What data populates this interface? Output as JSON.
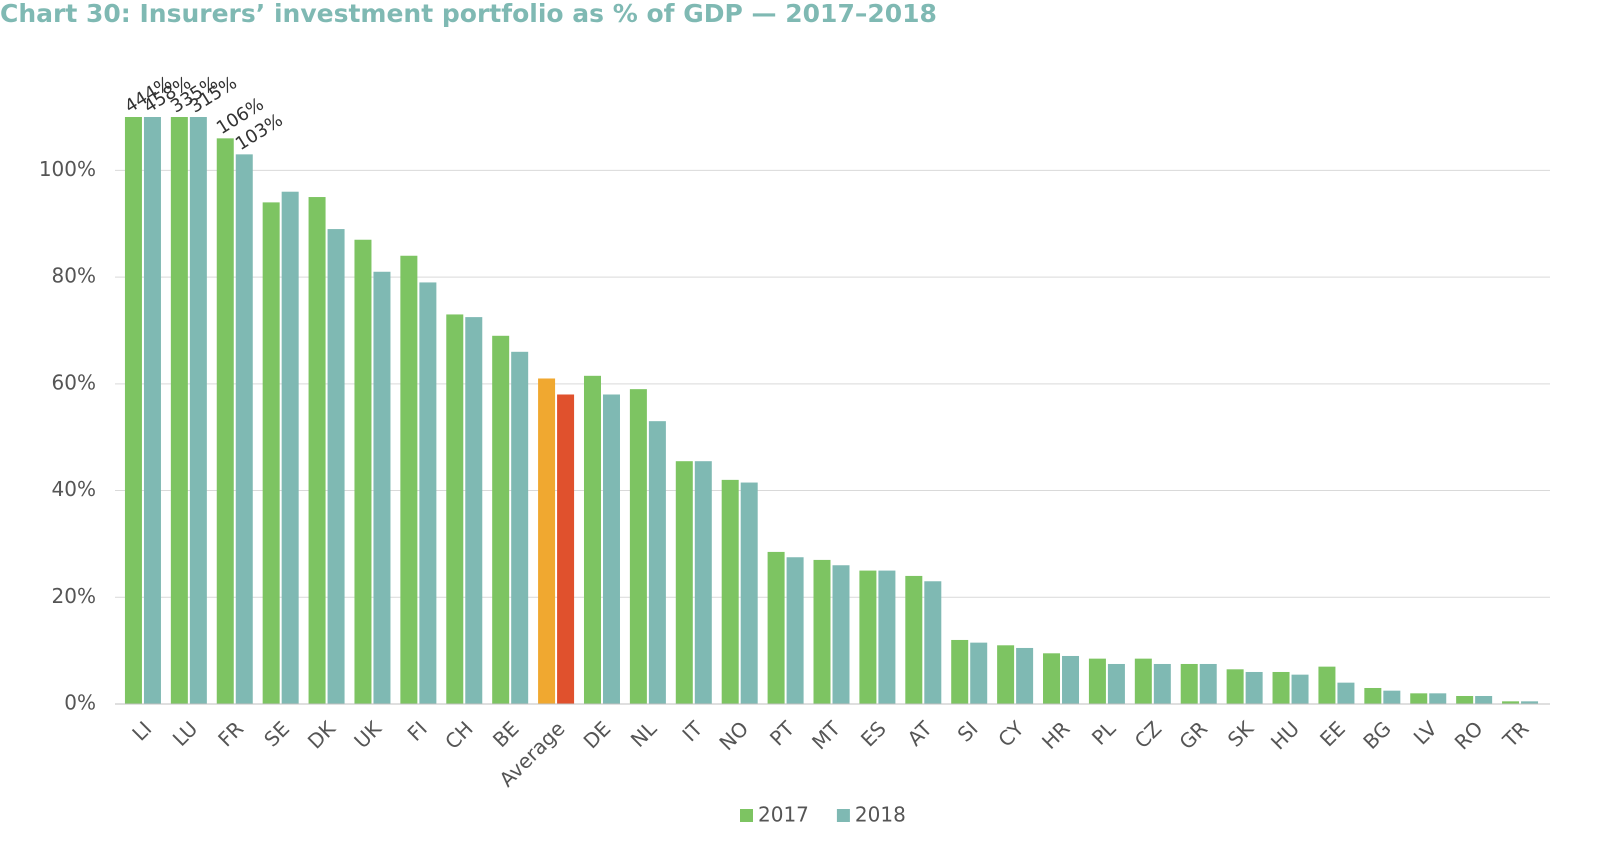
{
  "chart_data": {
    "type": "bar",
    "title": "Chart 30: Insurers’ investment portfolio as % of GDP — 2017–2018",
    "categories": [
      "LI",
      "LU",
      "FR",
      "SE",
      "DK",
      "UK",
      "FI",
      "CH",
      "BE",
      "Average",
      "DE",
      "NL",
      "IT",
      "NO",
      "PT",
      "MT",
      "ES",
      "AT",
      "SI",
      "CY",
      "HR",
      "PL",
      "CZ",
      "GR",
      "SK",
      "HU",
      "EE",
      "BG",
      "LV",
      "RO",
      "TR"
    ],
    "highlight_category": "Average",
    "series": [
      {
        "name": "2017",
        "color": "#7dc462",
        "highlight_color": "#f0a830",
        "values": [
          444,
          335,
          106,
          94,
          95,
          87,
          84,
          73,
          69,
          61,
          61.5,
          59,
          45.5,
          42,
          28.5,
          27,
          25,
          24,
          12,
          11,
          9.5,
          8.5,
          8.5,
          7.5,
          6.5,
          6,
          7,
          3,
          2,
          1.5,
          0.5
        ],
        "value_labels": [
          "444%",
          "335%",
          "106%",
          null,
          null,
          null,
          null,
          null,
          null,
          null,
          null,
          null,
          null,
          null,
          null,
          null,
          null,
          null,
          null,
          null,
          null,
          null,
          null,
          null,
          null,
          null,
          null,
          null,
          null,
          null,
          null
        ]
      },
      {
        "name": "2018",
        "color": "#7fb9b3",
        "highlight_color": "#e0512d",
        "values": [
          458,
          315,
          103,
          96,
          89,
          81,
          79,
          72.5,
          66,
          58,
          58,
          53,
          45.5,
          41.5,
          27.5,
          26,
          25,
          23,
          11.5,
          10.5,
          9,
          7.5,
          7.5,
          7.5,
          6,
          5.5,
          4,
          2.5,
          2,
          1.5,
          0.5
        ],
        "value_labels": [
          "458%",
          "315%",
          "103%",
          null,
          null,
          null,
          null,
          null,
          null,
          null,
          null,
          null,
          null,
          null,
          null,
          null,
          null,
          null,
          null,
          null,
          null,
          null,
          null,
          null,
          null,
          null,
          null,
          null,
          null,
          null,
          null
        ]
      }
    ],
    "ylim": [
      0,
      110
    ],
    "yticks": [
      {
        "value": 0,
        "label": "0%"
      },
      {
        "value": 20,
        "label": "20%"
      },
      {
        "value": 40,
        "label": "40%"
      },
      {
        "value": 60,
        "label": "60%"
      },
      {
        "value": 80,
        "label": "80%"
      },
      {
        "value": 100,
        "label": "100%"
      }
    ],
    "grid": true,
    "legend": "bottom"
  }
}
